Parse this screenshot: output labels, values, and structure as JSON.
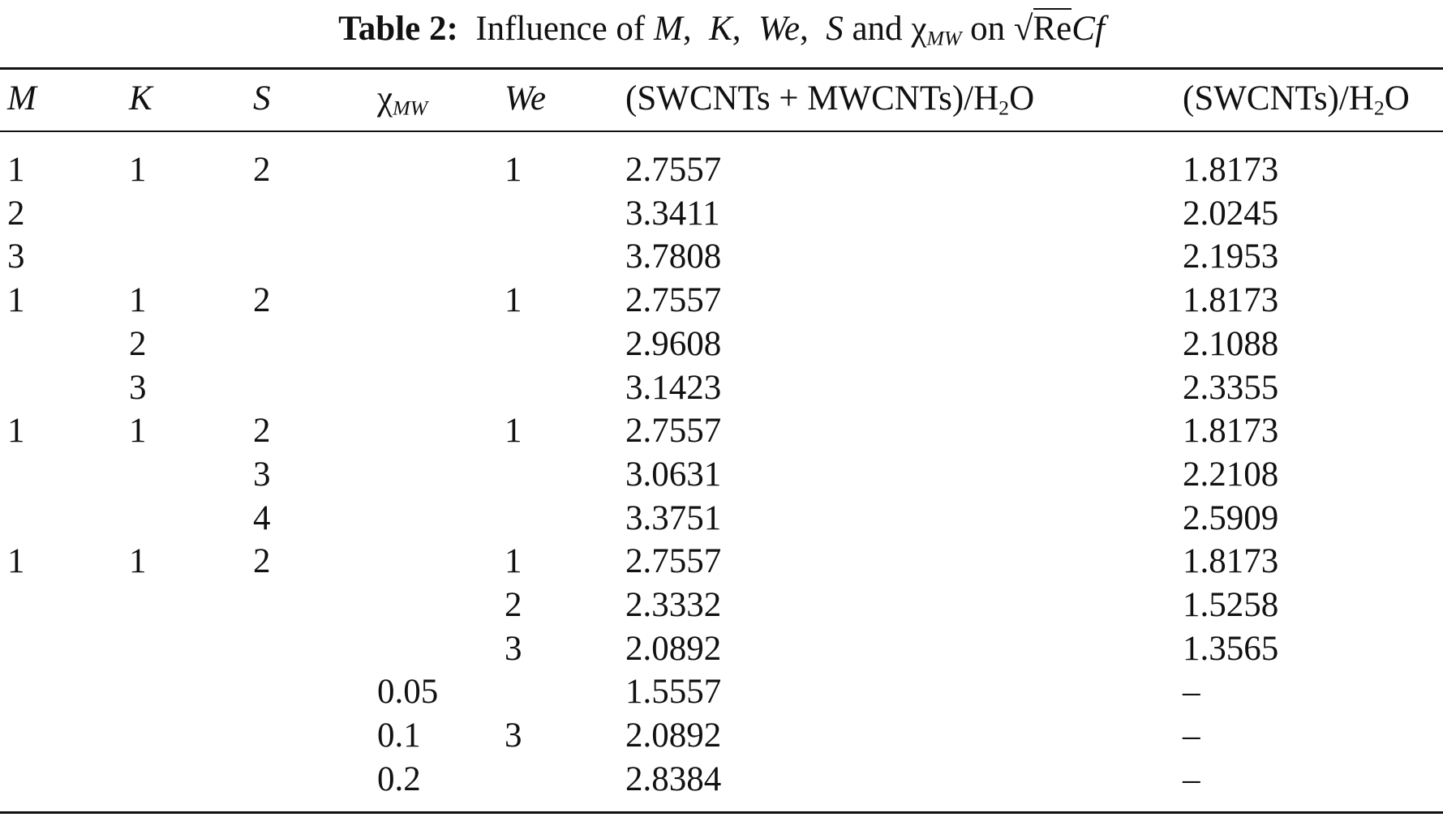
{
  "title": {
    "label": "Table 2:",
    "parts": [
      "Influence of",
      "M",
      ",",
      "K",
      ",",
      "We",
      ",",
      "S",
      "and",
      "χ",
      "MW",
      "on",
      "Re",
      "Cf"
    ]
  },
  "table": {
    "headers": [
      {
        "text": "M"
      },
      {
        "text": "K"
      },
      {
        "text": "S"
      },
      {
        "text": "χ",
        "sub": "MW"
      },
      {
        "text": "We"
      },
      {
        "text": "(SWCNTs + MWCNTs)/H",
        "sub": "2",
        "tail": "O"
      },
      {
        "text": "(SWCNTs)/H",
        "sub": "2",
        "tail": "O"
      }
    ],
    "rows": [
      [
        "1",
        "1",
        "2",
        null,
        "1",
        "2.7557",
        "1.8173"
      ],
      [
        "2",
        null,
        null,
        null,
        null,
        "3.3411",
        "2.0245"
      ],
      [
        "3",
        null,
        null,
        null,
        null,
        "3.7808",
        "2.1953"
      ],
      [
        "1",
        "1",
        "2",
        null,
        "1",
        "2.7557",
        "1.8173"
      ],
      [
        null,
        "2",
        null,
        null,
        null,
        "2.9608",
        "2.1088"
      ],
      [
        null,
        "3",
        null,
        null,
        null,
        "3.1423",
        "2.3355"
      ],
      [
        "1",
        "1",
        "2",
        null,
        "1",
        "2.7557",
        "1.8173"
      ],
      [
        null,
        null,
        "3",
        null,
        null,
        "3.0631",
        "2.2108"
      ],
      [
        null,
        null,
        "4",
        null,
        null,
        "3.3751",
        "2.5909"
      ],
      [
        "1",
        "1",
        "2",
        null,
        "1",
        "2.7557",
        "1.8173"
      ],
      [
        null,
        null,
        null,
        null,
        "2",
        "2.3332",
        "1.5258"
      ],
      [
        null,
        null,
        null,
        null,
        "3",
        "2.0892",
        "1.3565"
      ],
      [
        null,
        null,
        null,
        "0.05",
        null,
        "1.5557",
        "–"
      ],
      [
        null,
        null,
        null,
        "0.1",
        "3",
        "2.0892",
        "–"
      ],
      [
        null,
        null,
        null,
        "0.2",
        null,
        "2.8384",
        "–"
      ]
    ]
  }
}
